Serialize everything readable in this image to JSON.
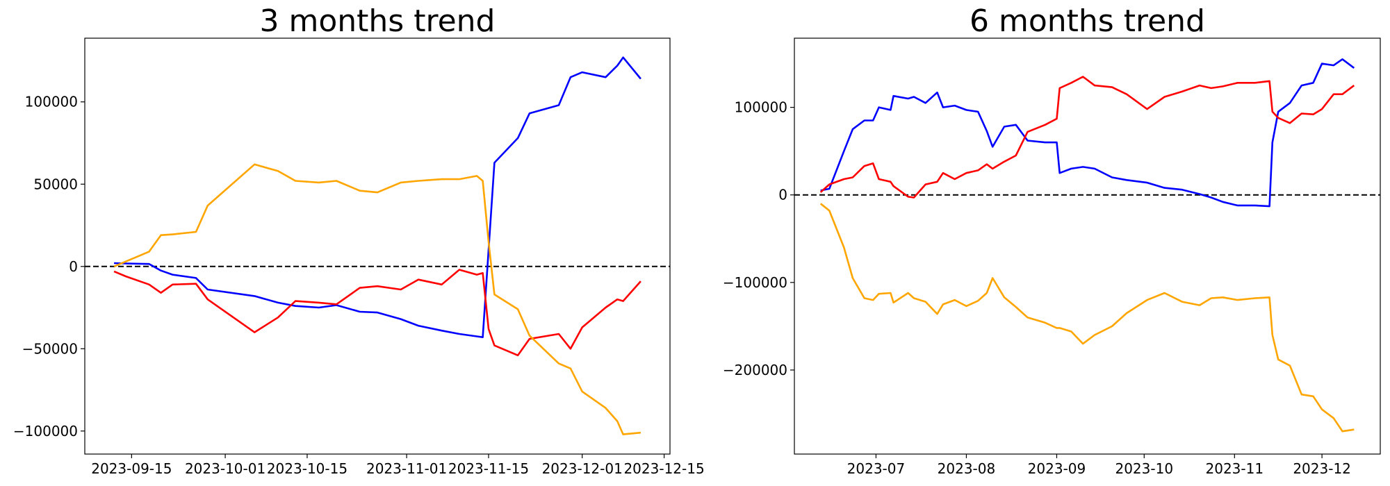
{
  "chart_data": [
    {
      "type": "line",
      "title": "3 months trend",
      "x": [
        "2023-09-12",
        "2023-09-14",
        "2023-09-18",
        "2023-09-20",
        "2023-09-22",
        "2023-09-26",
        "2023-09-28",
        "2023-10-06",
        "2023-10-10",
        "2023-10-13",
        "2023-10-17",
        "2023-10-20",
        "2023-10-24",
        "2023-10-27",
        "2023-10-31",
        "2023-11-03",
        "2023-11-07",
        "2023-11-10",
        "2023-11-13",
        "2023-11-14",
        "2023-11-15",
        "2023-11-16",
        "2023-11-20",
        "2023-11-22",
        "2023-11-27",
        "2023-11-29",
        "2023-12-01",
        "2023-12-05",
        "2023-12-07",
        "2023-12-08",
        "2023-12-11"
      ],
      "series": [
        {
          "color": "#0000ff",
          "values": [
            2000,
            1800,
            1500,
            -2500,
            -5000,
            -7000,
            -14000,
            -18000,
            -22000,
            -24000,
            -25000,
            -23500,
            -27500,
            -28000,
            -32000,
            -36000,
            -39000,
            -41000,
            -42500,
            -43000,
            10000,
            63000,
            78000,
            93000,
            98000,
            115000,
            118000,
            115000,
            122000,
            127000,
            114000
          ]
        },
        {
          "color": "#ff0000",
          "values": [
            -3000,
            -6000,
            -11000,
            -16000,
            -11000,
            -10500,
            -20000,
            -40000,
            -31000,
            -21000,
            -22000,
            -23000,
            -13000,
            -12000,
            -14000,
            -8000,
            -11000,
            -2000,
            -5000,
            -4000,
            -38000,
            -48000,
            -54000,
            -44000,
            -41000,
            -50000,
            -37000,
            -25000,
            -20000,
            -21000,
            -9000
          ]
        },
        {
          "color": "#ffa500",
          "values": [
            0,
            3000,
            9000,
            19000,
            19500,
            21000,
            37000,
            62000,
            58000,
            52000,
            51000,
            52000,
            46000,
            45000,
            51000,
            52000,
            53000,
            53000,
            55000,
            52000,
            15000,
            -17000,
            -26000,
            -42000,
            -59000,
            -62000,
            -76000,
            -86000,
            -94000,
            -102000,
            -101000
          ]
        }
      ],
      "hline": 0,
      "xlim": [
        "2023-09-07",
        "2023-12-16"
      ],
      "xticks": [
        "2023-09-15",
        "2023-10-01",
        "2023-10-15",
        "2023-11-01",
        "2023-11-15",
        "2023-12-01",
        "2023-12-15"
      ],
      "ylim": [
        -114000,
        138700
      ],
      "yticks": [
        {
          "value": -100000,
          "label": "−100000"
        },
        {
          "value": -50000,
          "label": "−50000"
        },
        0,
        50000,
        100000
      ]
    },
    {
      "type": "line",
      "title": "6 months trend",
      "x": [
        "2023-06-12",
        "2023-06-15",
        "2023-06-20",
        "2023-06-23",
        "2023-06-27",
        "2023-06-30",
        "2023-07-02",
        "2023-07-06",
        "2023-07-07",
        "2023-07-12",
        "2023-07-14",
        "2023-07-18",
        "2023-07-22",
        "2023-07-24",
        "2023-07-28",
        "2023-08-01",
        "2023-08-05",
        "2023-08-08",
        "2023-08-10",
        "2023-08-14",
        "2023-08-18",
        "2023-08-22",
        "2023-08-28",
        "2023-09-01",
        "2023-09-02",
        "2023-09-06",
        "2023-09-10",
        "2023-09-14",
        "2023-09-20",
        "2023-09-25",
        "2023-10-02",
        "2023-10-08",
        "2023-10-14",
        "2023-10-20",
        "2023-10-24",
        "2023-10-28",
        "2023-11-02",
        "2023-11-08",
        "2023-11-13",
        "2023-11-14",
        "2023-11-16",
        "2023-11-20",
        "2023-11-24",
        "2023-11-28",
        "2023-12-01",
        "2023-12-05",
        "2023-12-08",
        "2023-12-12"
      ],
      "series": [
        {
          "color": "#0000ff",
          "values": [
            5000,
            7000,
            50000,
            75000,
            85000,
            85000,
            100000,
            97000,
            113000,
            110000,
            112000,
            105000,
            117000,
            100000,
            102000,
            97000,
            95000,
            73000,
            55000,
            78000,
            80000,
            62000,
            60000,
            60000,
            25000,
            30000,
            32000,
            30000,
            20000,
            17000,
            14000,
            8000,
            6000,
            1000,
            -3000,
            -8000,
            -12000,
            -12000,
            -13000,
            60000,
            95000,
            105000,
            125000,
            128000,
            150000,
            148000,
            155000,
            145000
          ]
        },
        {
          "color": "#ff0000",
          "values": [
            3000,
            12000,
            18000,
            20000,
            33000,
            36000,
            18000,
            15000,
            10000,
            -2000,
            -3000,
            12000,
            15000,
            25000,
            18000,
            25000,
            28000,
            35000,
            30000,
            38000,
            45000,
            72000,
            80000,
            87000,
            122000,
            128000,
            135000,
            125000,
            123000,
            115000,
            98000,
            112000,
            118000,
            125000,
            122000,
            124000,
            128000,
            128000,
            130000,
            95000,
            88000,
            82000,
            93000,
            92000,
            98000,
            115000,
            115000,
            125000
          ]
        },
        {
          "color": "#ffa500",
          "values": [
            -10000,
            -18000,
            -60000,
            -95000,
            -118000,
            -120000,
            -113000,
            -112000,
            -123000,
            -112000,
            -118000,
            -122000,
            -136000,
            -125000,
            -120000,
            -127000,
            -121000,
            -112000,
            -95000,
            -117000,
            -128000,
            -140000,
            -146000,
            -152000,
            -152000,
            -156000,
            -170000,
            -160000,
            -150000,
            -135000,
            -120000,
            -112000,
            -122000,
            -126000,
            -118000,
            -117000,
            -120000,
            -118000,
            -117000,
            -160000,
            -188000,
            -195000,
            -228000,
            -230000,
            -245000,
            -255000,
            -270000,
            -268000
          ]
        }
      ],
      "hline": 0,
      "xlim": [
        "2023-06-03",
        "2023-12-21"
      ],
      "xticks": [
        {
          "value": "2023-07-01",
          "label": "2023-07"
        },
        {
          "value": "2023-08-01",
          "label": "2023-08"
        },
        {
          "value": "2023-09-01",
          "label": "2023-09"
        },
        {
          "value": "2023-10-01",
          "label": "2023-10"
        },
        {
          "value": "2023-11-01",
          "label": "2023-11"
        },
        {
          "value": "2023-12-01",
          "label": "2023-12"
        }
      ],
      "ylim": [
        -296000,
        179000
      ],
      "yticks": [
        {
          "value": -200000,
          "label": "−200000"
        },
        {
          "value": -100000,
          "label": "−100000"
        },
        0,
        100000
      ]
    }
  ]
}
